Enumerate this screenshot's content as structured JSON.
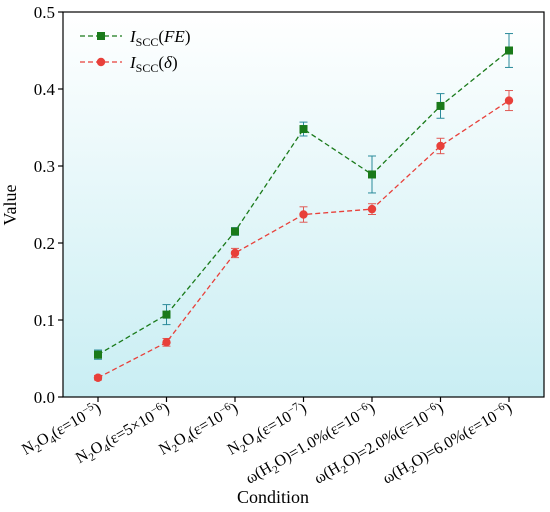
{
  "chart_data": {
    "type": "line",
    "xlabel": "Condition",
    "ylabel": "Value",
    "ylim": [
      0,
      0.5
    ],
    "yticks": [
      0.0,
      0.1,
      0.2,
      0.3,
      0.4,
      0.5
    ],
    "ytick_labels": [
      "0.0",
      "0.1",
      "0.2",
      "0.3",
      "0.4",
      "0.5"
    ],
    "categories": [
      "N2O4(ε=10-5)",
      "N2O4(ε=5×10-6)",
      "N2O4(ε=10-6)",
      "N2O4(ε=10-7)",
      "ω(H2O)=1.0%(ε=10-6)",
      "ω(H2O)=2.0%(ε=10-6)",
      "ω(H2O)=6.0%(ε=10-6)"
    ],
    "background_gradient": [
      "#ffffff",
      "#c9eef3"
    ],
    "series": [
      {
        "name": "ISCC(FE)",
        "color": "#1a7a1a",
        "marker": "square",
        "values": [
          0.055,
          0.107,
          0.215,
          0.348,
          0.289,
          0.378,
          0.45
        ],
        "errors": [
          0.006,
          0.013,
          0.005,
          0.009,
          0.024,
          0.016,
          0.022
        ]
      },
      {
        "name": "ISCC(δ)",
        "color": "#e8403a",
        "marker": "circle",
        "values": [
          0.025,
          0.071,
          0.187,
          0.237,
          0.244,
          0.326,
          0.385
        ],
        "errors": [
          0.003,
          0.005,
          0.006,
          0.01,
          0.007,
          0.01,
          0.013
        ]
      }
    ]
  }
}
